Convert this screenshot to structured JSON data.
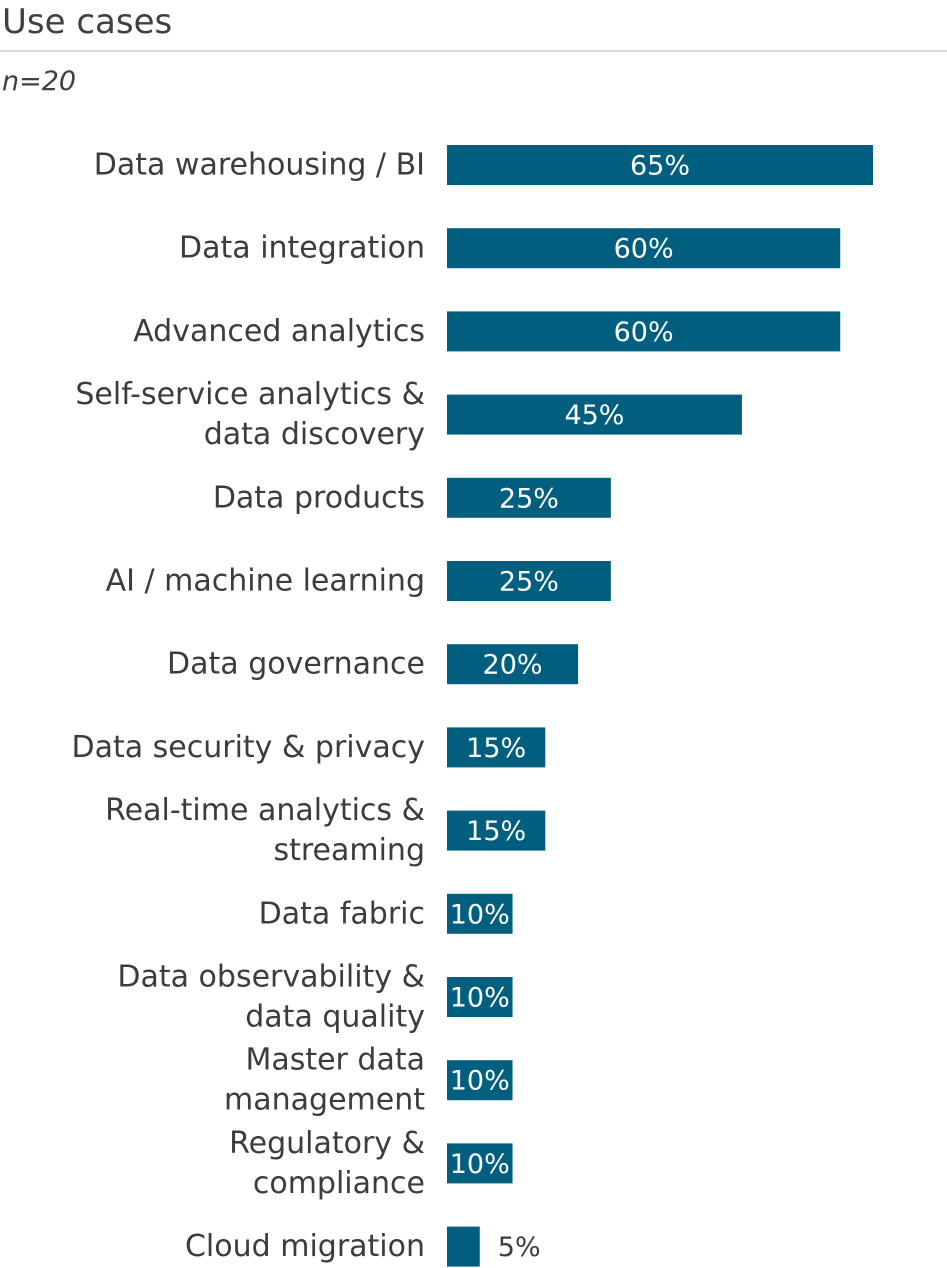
{
  "chart_data": {
    "type": "bar",
    "orientation": "horizontal",
    "title": "Use cases",
    "subtitle": "n=20",
    "categories": [
      "Data warehousing / BI",
      "Data integration",
      "Advanced analytics",
      "Self-service analytics & data discovery",
      "Data products",
      "AI / machine learning",
      "Data governance",
      "Data security & privacy",
      "Real-time analytics & streaming",
      "Data fabric",
      "Data observability & data quality",
      "Master data management",
      "Regulatory & compliance",
      "Cloud migration"
    ],
    "category_lines": [
      [
        "Data warehousing / BI"
      ],
      [
        "Data integration"
      ],
      [
        "Advanced analytics"
      ],
      [
        "Self-service analytics &",
        "data discovery"
      ],
      [
        "Data products"
      ],
      [
        "AI / machine learning"
      ],
      [
        "Data governance"
      ],
      [
        "Data security & privacy"
      ],
      [
        "Real-time analytics &",
        "streaming"
      ],
      [
        "Data fabric"
      ],
      [
        "Data observability &",
        "data quality"
      ],
      [
        "Master data",
        "management"
      ],
      [
        "Regulatory &",
        "compliance"
      ],
      [
        "Cloud migration"
      ]
    ],
    "values": [
      65,
      60,
      60,
      45,
      25,
      25,
      20,
      15,
      15,
      10,
      10,
      10,
      10,
      5
    ],
    "value_labels": [
      "65%",
      "60%",
      "60%",
      "45%",
      "25%",
      "25%",
      "20%",
      "15%",
      "15%",
      "10%",
      "10%",
      "10%",
      "10%",
      "5%"
    ],
    "unit": "%",
    "xlim": [
      0,
      65
    ],
    "grid": false,
    "legend": "none",
    "colors": {
      "bar": "#005f7f",
      "label_inside": "#ffffff",
      "label_outside": "#3c3c3c",
      "category_text": "#3c3c3c"
    }
  }
}
